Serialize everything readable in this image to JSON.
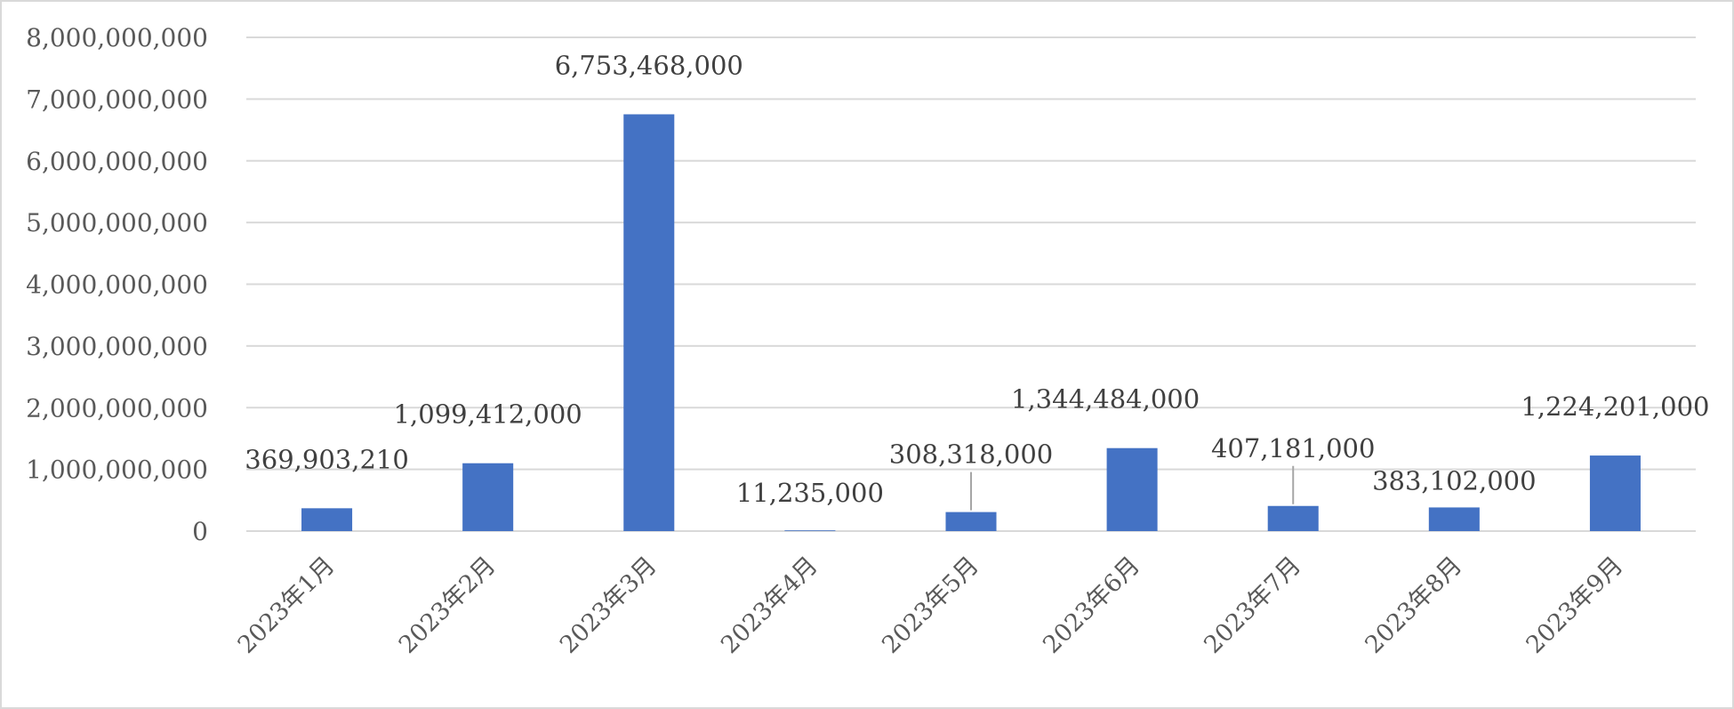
{
  "chart_data": {
    "type": "bar",
    "title": "",
    "xlabel": "",
    "ylabel": "",
    "categories": [
      "2023年1月",
      "2023年2月",
      "2023年3月",
      "2023年4月",
      "2023年5月",
      "2023年6月",
      "2023年7月",
      "2023年8月",
      "2023年9月"
    ],
    "values": [
      369903210,
      1099412000,
      6753468000,
      11235000,
      308318000,
      1344484000,
      407181000,
      383102000,
      1224201000
    ],
    "data_labels": [
      "369,903,210",
      "1,099,412,000",
      "6,753,468,000",
      "11,235,000",
      "308,318,000",
      "1,344,484,000",
      "407,181,000",
      "383,102,000",
      "1,224,201,000"
    ],
    "ylim": [
      0,
      8000000000
    ],
    "y_ticks": [
      0,
      1000000000,
      2000000000,
      3000000000,
      4000000000,
      5000000000,
      6000000000,
      7000000000,
      8000000000
    ],
    "y_tick_labels": [
      "0",
      "1,000,000,000",
      "2,000,000,000",
      "3,000,000,000",
      "4,000,000,000",
      "5,000,000,000",
      "6,000,000,000",
      "7,000,000,000",
      "8,000,000,000"
    ],
    "grid": true,
    "legend": false,
    "bar_color": "#4472C4",
    "gridline_color": "#d9d9d9",
    "axis_color": "#d9d9d9"
  }
}
